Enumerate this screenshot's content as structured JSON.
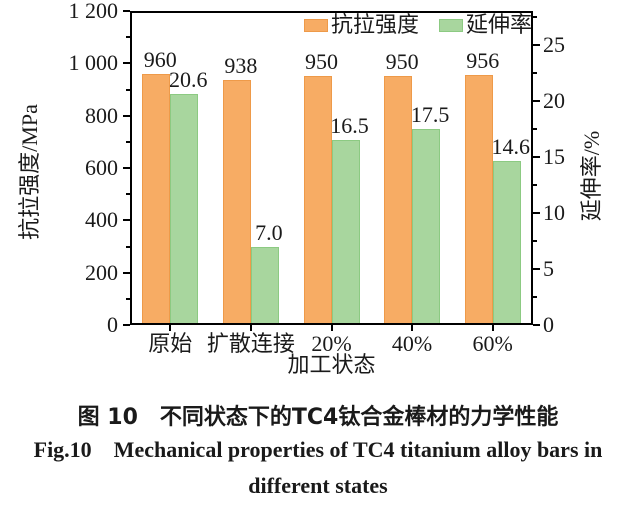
{
  "chart_data": {
    "type": "bar",
    "title": "",
    "categories": [
      "原始",
      "扩散连接",
      "20%",
      "40%",
      "60%"
    ],
    "series": [
      {
        "name": "抗拉强度",
        "axis": "left",
        "color": "#F7AC64",
        "border": "#EE9A49",
        "values": [
          960,
          938,
          950,
          950,
          956
        ]
      },
      {
        "name": "延伸率",
        "axis": "right",
        "color": "#A8D69E",
        "border": "#8CCA82",
        "values": [
          20.6,
          7.0,
          16.5,
          17.5,
          14.6
        ]
      }
    ],
    "value_labels": [
      [
        "960",
        "938",
        "950",
        "950",
        "956"
      ],
      [
        "20.6",
        "7.0",
        "16.5",
        "17.5",
        "14.6"
      ]
    ],
    "xlabel": "加工状态",
    "ylabel_left": "抗拉强度/MPa",
    "ylabel_right": "延伸率/%",
    "left_axis": {
      "min": 0,
      "max": 1200,
      "minor_step": 100,
      "major_ticks": [
        {
          "v": 0,
          "label": "0"
        },
        {
          "v": 200,
          "label": "200"
        },
        {
          "v": 400,
          "label": "400"
        },
        {
          "v": 600,
          "label": "600"
        },
        {
          "v": 800,
          "label": "800"
        },
        {
          "v": 1000,
          "label": "1 000"
        },
        {
          "v": 1200,
          "label": "1 200"
        }
      ]
    },
    "right_axis": {
      "min": 0,
      "max": 28,
      "minor_step": 2.5,
      "major_ticks": [
        {
          "v": 0,
          "label": "0"
        },
        {
          "v": 5,
          "label": "5"
        },
        {
          "v": 10,
          "label": "10"
        },
        {
          "v": 15,
          "label": "15"
        },
        {
          "v": 20,
          "label": "20"
        },
        {
          "v": 25,
          "label": "25"
        }
      ]
    },
    "legend_position": "top-right",
    "grid": false
  },
  "caption": {
    "zh": "图 10 不同状态下的TC4钛合金棒材的力学性能",
    "en_line1": "Fig.10 Mechanical properties of TC4 titanium alloy bars in",
    "en_line2": "different states"
  }
}
